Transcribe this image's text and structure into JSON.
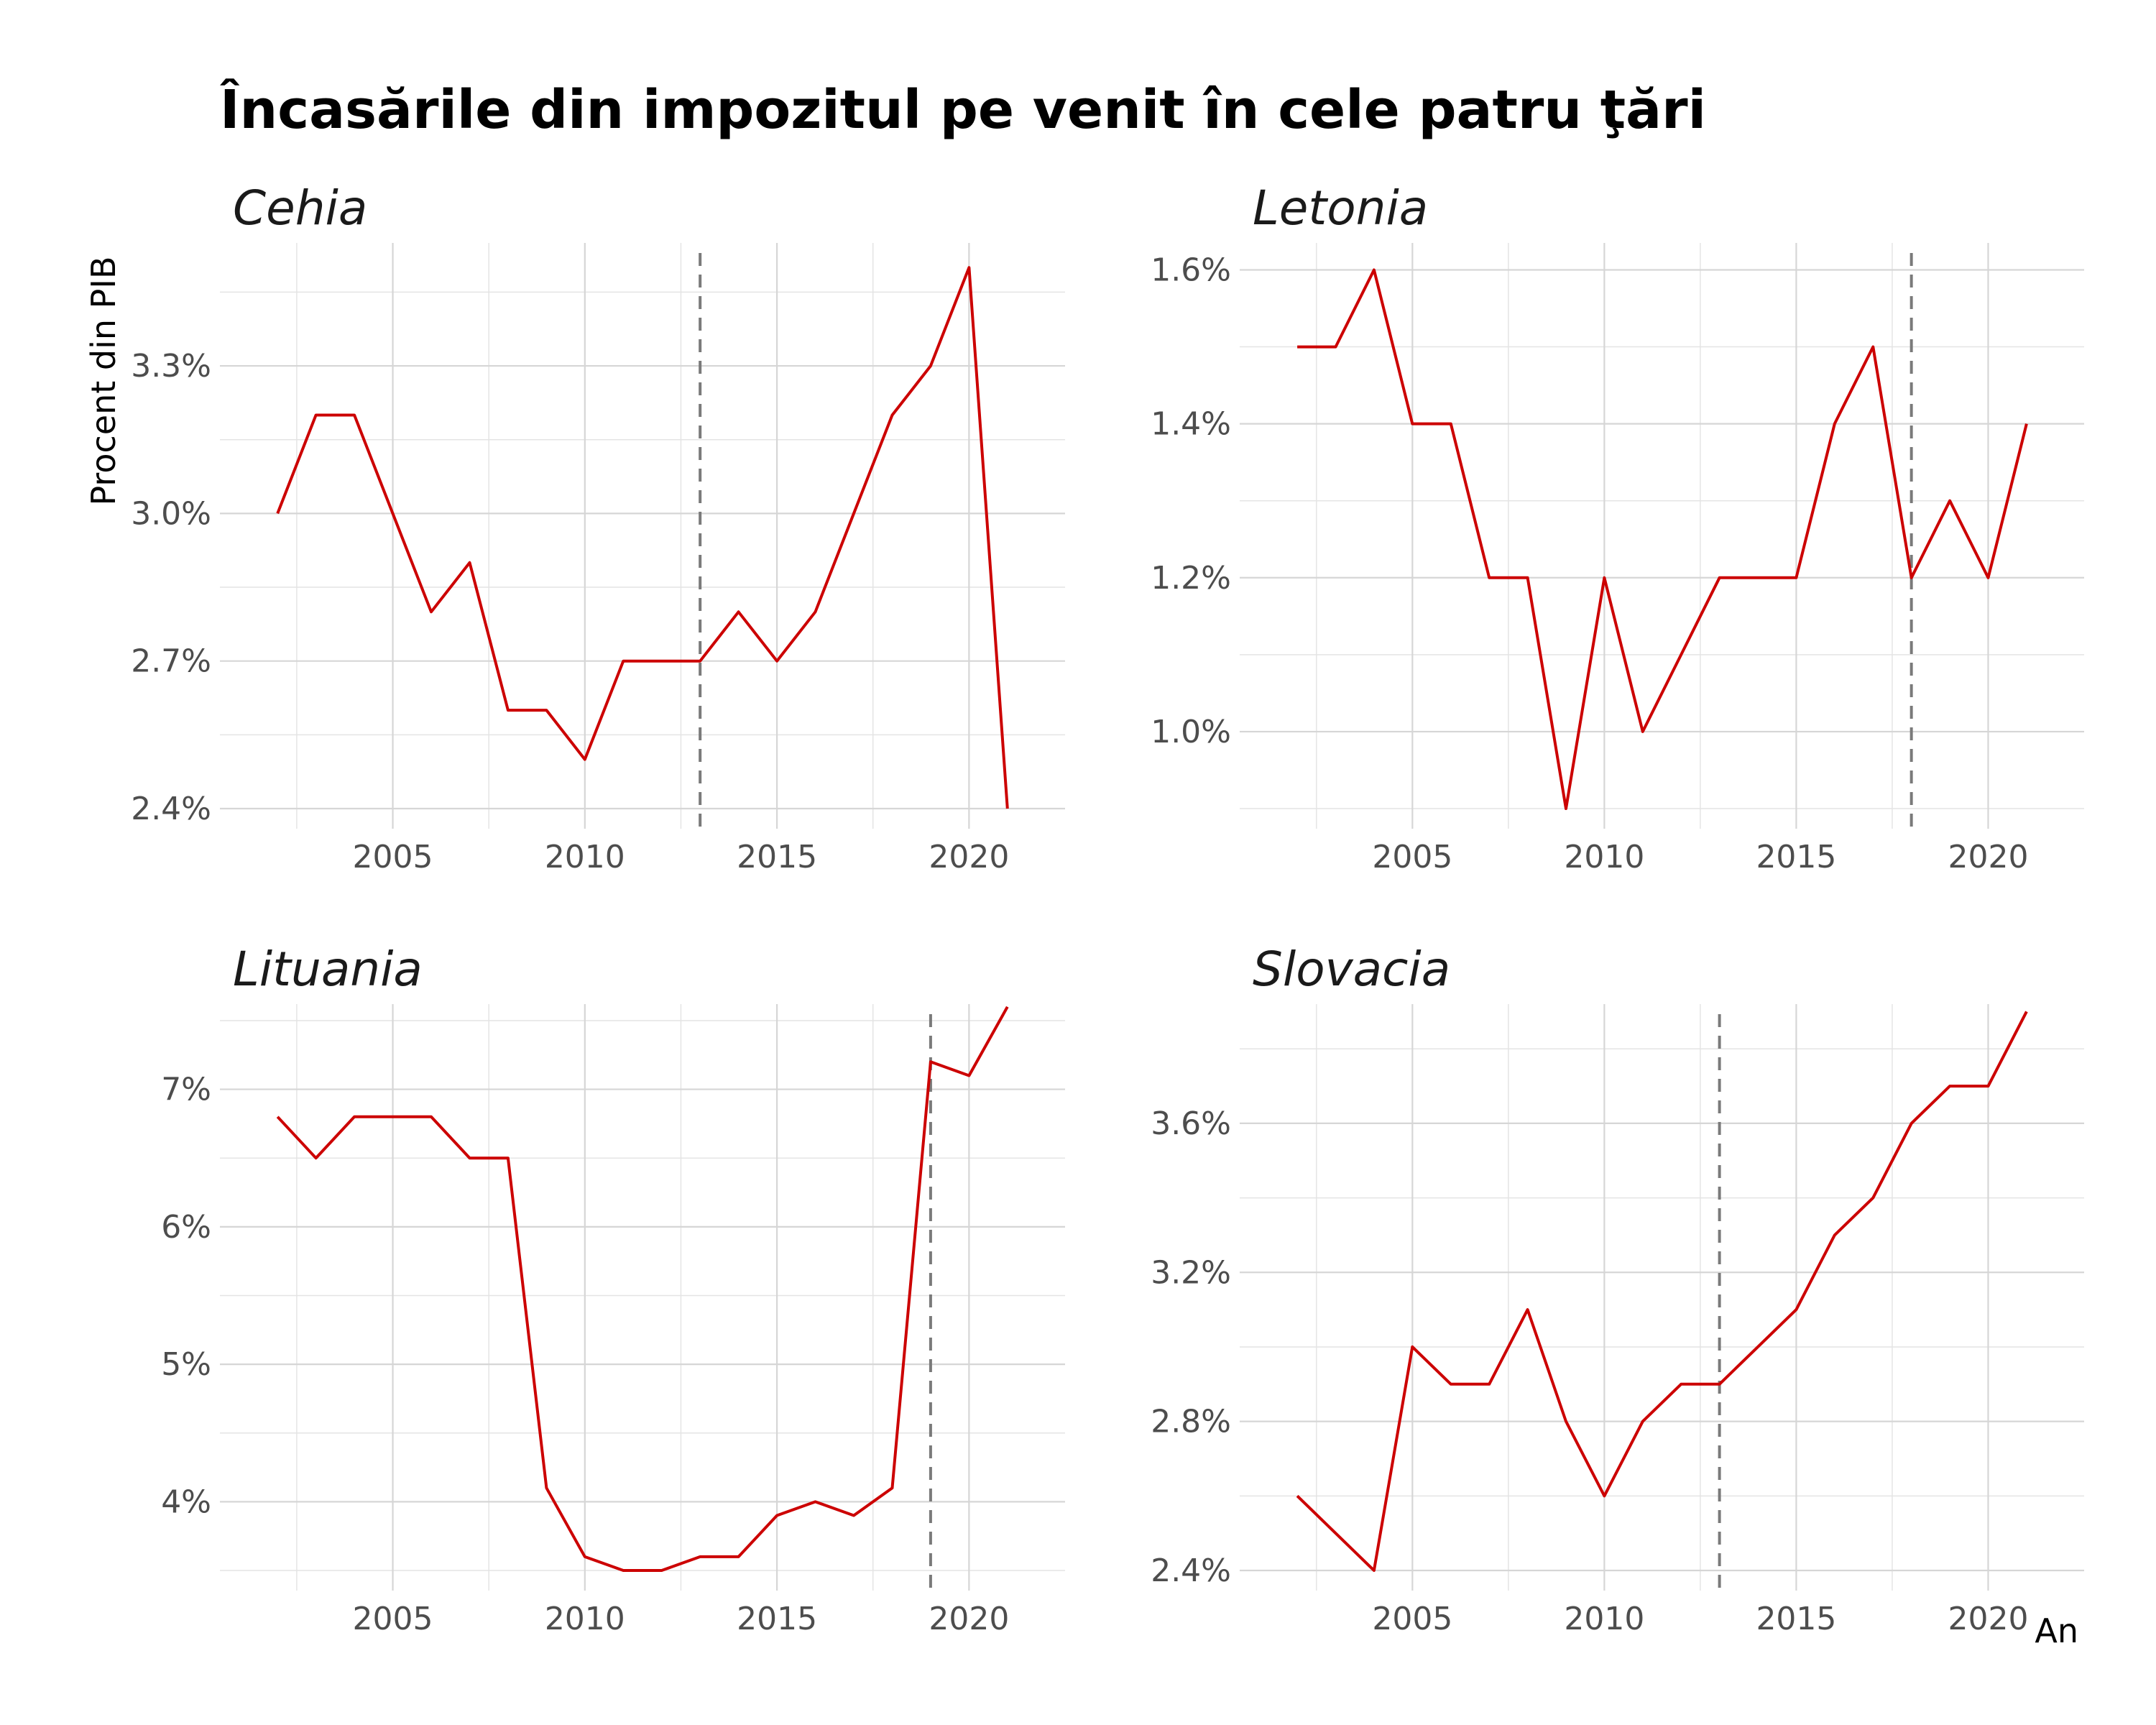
{
  "title": "Încasările din impozitul pe venit în cele patru ţări",
  "y_axis_label": "Procent din PIB",
  "x_axis_label": "An",
  "colors": {
    "line": "#cc0000",
    "reference_line": "#7a7a7a",
    "grid": "#d6d6d6"
  },
  "chart_data": [
    {
      "type": "line",
      "panel_title": "Cehia",
      "x": [
        2002,
        2003,
        2004,
        2005,
        2006,
        2007,
        2008,
        2009,
        2010,
        2011,
        2012,
        2013,
        2014,
        2015,
        2016,
        2017,
        2018,
        2019,
        2020,
        2021
      ],
      "values": [
        3.0,
        3.2,
        3.2,
        3.0,
        2.8,
        2.9,
        2.6,
        2.6,
        2.5,
        2.7,
        2.7,
        2.7,
        2.8,
        2.7,
        2.8,
        3.0,
        3.2,
        3.3,
        3.5,
        2.4
      ],
      "reference_year": 2013,
      "xlim": [
        2000.5,
        2022.5
      ],
      "ylim": [
        2.4,
        3.55
      ],
      "x_ticks": [
        2005,
        2010,
        2015,
        2020
      ],
      "x_tick_labels": [
        "2005",
        "2010",
        "2015",
        "2020"
      ],
      "y_ticks": [
        2.4,
        2.7,
        3.0,
        3.3
      ],
      "y_tick_labels": [
        "2.4%",
        "2.7%",
        "3.0%",
        "3.3%"
      ],
      "y_minor_ticks": [
        2.55,
        2.85,
        3.15,
        3.45
      ]
    },
    {
      "type": "line",
      "panel_title": "Letonia",
      "x": [
        2002,
        2003,
        2004,
        2005,
        2006,
        2007,
        2008,
        2009,
        2010,
        2011,
        2012,
        2013,
        2014,
        2015,
        2016,
        2017,
        2018,
        2019,
        2020,
        2021
      ],
      "values": [
        1.5,
        1.5,
        1.6,
        1.4,
        1.4,
        1.2,
        1.2,
        0.9,
        1.2,
        1.0,
        1.1,
        1.2,
        1.2,
        1.2,
        1.4,
        1.5,
        1.2,
        1.3,
        1.2,
        1.4
      ],
      "reference_year": 2018,
      "xlim": [
        2000.5,
        2022.5
      ],
      "ylim": [
        0.9,
        1.635
      ],
      "x_ticks": [
        2005,
        2010,
        2015,
        2020
      ],
      "x_tick_labels": [
        "2005",
        "2010",
        "2015",
        "2020"
      ],
      "y_ticks": [
        1.0,
        1.2,
        1.4,
        1.6
      ],
      "y_tick_labels": [
        "1.0%",
        "1.2%",
        "1.4%",
        "1.6%"
      ],
      "y_minor_ticks": [
        0.9,
        1.1,
        1.3,
        1.5
      ]
    },
    {
      "type": "line",
      "panel_title": "Lituania",
      "x": [
        2002,
        2003,
        2004,
        2005,
        2006,
        2007,
        2008,
        2009,
        2010,
        2011,
        2012,
        2013,
        2014,
        2015,
        2016,
        2017,
        2018,
        2019,
        2020,
        2021
      ],
      "values": [
        6.8,
        6.5,
        6.8,
        6.8,
        6.8,
        6.5,
        6.5,
        4.1,
        3.6,
        3.5,
        3.5,
        3.6,
        3.6,
        3.9,
        4.0,
        3.9,
        4.1,
        7.2,
        7.1,
        7.6
      ],
      "reference_year": 2019,
      "xlim": [
        2000.5,
        2022.5
      ],
      "ylim": [
        3.5,
        7.62
      ],
      "x_ticks": [
        2005,
        2010,
        2015,
        2020
      ],
      "x_tick_labels": [
        "2005",
        "2010",
        "2015",
        "2020"
      ],
      "y_ticks": [
        4,
        5,
        6,
        7
      ],
      "y_tick_labels": [
        "4%",
        "5%",
        "6%",
        "7%"
      ],
      "y_minor_ticks": [
        3.5,
        4.5,
        5.5,
        6.5,
        7.5
      ]
    },
    {
      "type": "line",
      "panel_title": "Slovacia",
      "x": [
        2002,
        2003,
        2004,
        2005,
        2006,
        2007,
        2008,
        2009,
        2010,
        2011,
        2012,
        2013,
        2014,
        2015,
        2016,
        2017,
        2018,
        2019,
        2020,
        2021
      ],
      "values": [
        2.6,
        2.5,
        2.4,
        3.0,
        2.9,
        2.9,
        3.1,
        2.8,
        2.6,
        2.8,
        2.9,
        2.9,
        3.0,
        3.1,
        3.3,
        3.4,
        3.6,
        3.7,
        3.7,
        3.9
      ],
      "reference_year": 2013,
      "xlim": [
        2000.5,
        2022.5
      ],
      "ylim": [
        2.4,
        3.92
      ],
      "x_ticks": [
        2005,
        2010,
        2015,
        2020
      ],
      "x_tick_labels": [
        "2005",
        "2010",
        "2015",
        "2020"
      ],
      "y_ticks": [
        2.4,
        2.8,
        3.2,
        3.6
      ],
      "y_tick_labels": [
        "2.4%",
        "2.8%",
        "3.2%",
        "3.6%"
      ],
      "y_minor_ticks": [
        2.6,
        3.0,
        3.4,
        3.8
      ]
    }
  ]
}
